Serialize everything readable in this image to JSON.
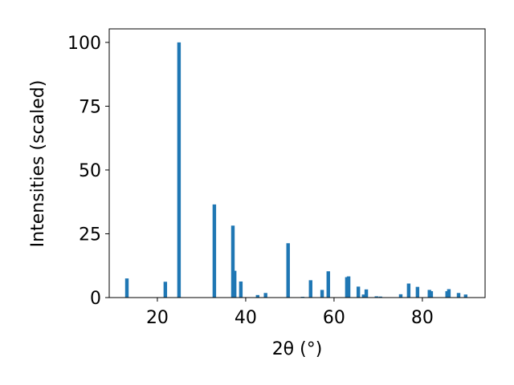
{
  "chart_data": {
    "type": "bar",
    "xlabel": "2θ (°)",
    "ylabel": "Intensities (scaled)",
    "color": "#1f77b4",
    "x": [
      13.1,
      21.8,
      24.9,
      32.9,
      37.1,
      37.5,
      38.9,
      42.7,
      44.5,
      49.6,
      52.9,
      54.7,
      57.3,
      58.7,
      62.9,
      63.3,
      65.5,
      66.7,
      67.3,
      69.6,
      70.5,
      75.1,
      76.9,
      78.9,
      81.6,
      82.0,
      85.6,
      86.0,
      88.2,
      89.8
    ],
    "values": [
      7.5,
      6.2,
      100,
      36.5,
      28.2,
      10.5,
      6.3,
      1.0,
      1.8,
      21.3,
      0.3,
      6.8,
      3.0,
      10.3,
      8.0,
      8.3,
      4.3,
      1.2,
      3.2,
      0.5,
      0.4,
      1.3,
      5.5,
      4.2,
      3.0,
      2.5,
      2.5,
      3.3,
      1.8,
      1.2
    ],
    "xlim": [
      9.1,
      94.2
    ],
    "ylim": [
      0,
      105.3
    ],
    "xticks": [
      20,
      40,
      60,
      80
    ],
    "yticks": [
      0,
      25,
      50,
      75,
      100
    ],
    "grid": false
  }
}
